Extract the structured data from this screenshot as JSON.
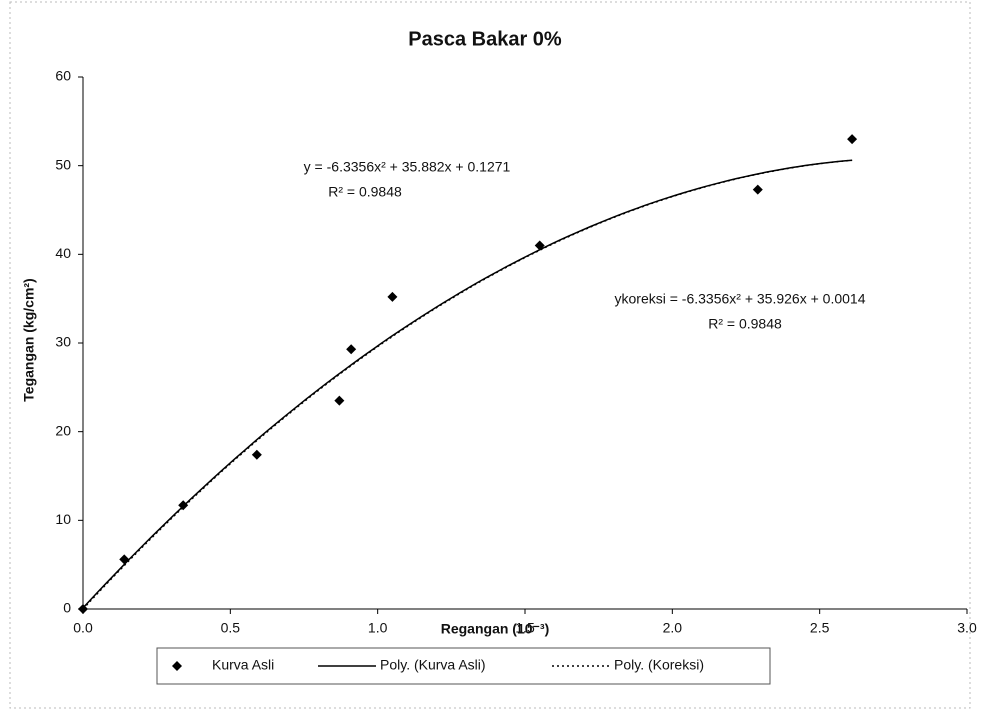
{
  "chart_data": {
    "type": "scatter",
    "title": "Pasca Bakar 0%",
    "x_label": "Regangan (10⁻³)",
    "y_label": "Tegangan (kg/cm²)",
    "xlim": [
      0,
      3
    ],
    "ylim": [
      0,
      60
    ],
    "xticks": [
      {
        "value": 0,
        "label": "0.0"
      },
      {
        "value": 0.5,
        "label": "0.5"
      },
      {
        "value": 1,
        "label": "1.0"
      },
      {
        "value": 1.5,
        "label": "1.5"
      },
      {
        "value": 2,
        "label": "2.0"
      },
      {
        "value": 2.5,
        "label": "2.5"
      },
      {
        "value": 3,
        "label": "3.0"
      }
    ],
    "yticks": [
      0,
      10,
      20,
      30,
      40,
      50,
      60
    ],
    "grid": false,
    "legend": "bottom",
    "series": [
      {
        "name": "Kurva Asli",
        "color": "#000000",
        "x": [
          0,
          0.14,
          0.34,
          0.59,
          0.87,
          0.91,
          1.05,
          1.55,
          2.29,
          2.61
        ],
        "values": [
          0,
          5.6,
          11.7,
          17.4,
          23.5,
          29.3,
          35.2,
          41.0,
          47.3,
          53.0
        ]
      }
    ],
    "trendlines": [
      {
        "name": "Poly. (Kurva Asli)",
        "style": "solid",
        "coefficients": [
          -6.3356,
          35.882,
          0.1271
        ],
        "equation": "y = -6.3356x² + 35.882x + 0.1271",
        "r2": "R² = 0.9848"
      },
      {
        "name": "Poly. (Koreksi)",
        "style": "dotted",
        "coefficients": [
          -6.3356,
          35.926,
          0.0014
        ],
        "equation": "ykoreksi = -6.3356x² + 35.926x + 0.0014",
        "r2": "R² = 0.9848"
      }
    ]
  }
}
